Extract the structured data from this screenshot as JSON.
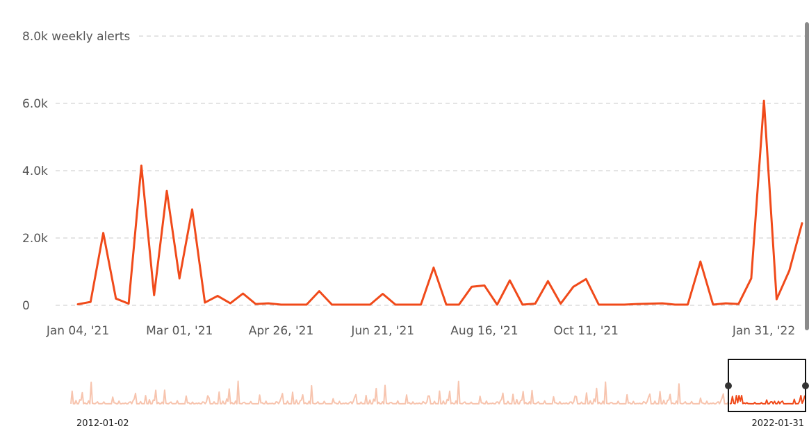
{
  "chart_data": {
    "type": "line",
    "title": "",
    "ylabel": "weekly alerts",
    "ylim": [
      0,
      8000
    ],
    "y_ticks": [
      {
        "value": 0,
        "label": "0"
      },
      {
        "value": 2000,
        "label": "2.0k"
      },
      {
        "value": 4000,
        "label": "4.0k"
      },
      {
        "value": 6000,
        "label": "6.0k"
      },
      {
        "value": 8000,
        "label": "8.0k weekly alerts"
      }
    ],
    "x_tick_labels": [
      {
        "week": 0,
        "label": "Jan 04, '21"
      },
      {
        "week": 8,
        "label": "Mar 01, '21"
      },
      {
        "week": 16,
        "label": "Apr 26, '21"
      },
      {
        "week": 24,
        "label": "Jun 21, '21"
      },
      {
        "week": 32,
        "label": "Aug 16, '21"
      },
      {
        "week": 40,
        "label": "Oct 11, '21"
      },
      {
        "week": 56,
        "label": "Jan 31, '22"
      }
    ],
    "grid": true,
    "line_color": "#f04a1a",
    "series": [
      {
        "values": [
          30,
          100,
          2150,
          200,
          50,
          4150,
          300,
          3400,
          800,
          2850,
          80,
          280,
          60,
          350,
          40,
          60,
          20,
          20,
          20,
          420,
          20,
          20,
          20,
          20,
          340,
          20,
          20,
          20,
          1120,
          20,
          20,
          550,
          590,
          20,
          740,
          20,
          50,
          720,
          50,
          550,
          780,
          20,
          20,
          20,
          40,
          50,
          60,
          20,
          20,
          1300,
          20,
          60,
          40,
          800,
          6080,
          180,
          1030,
          2440
        ]
      }
    ],
    "brush": {
      "start_label": "2012-01-02",
      "end_label": "2022-01-31",
      "overview_color": "#f7c4ae"
    }
  }
}
